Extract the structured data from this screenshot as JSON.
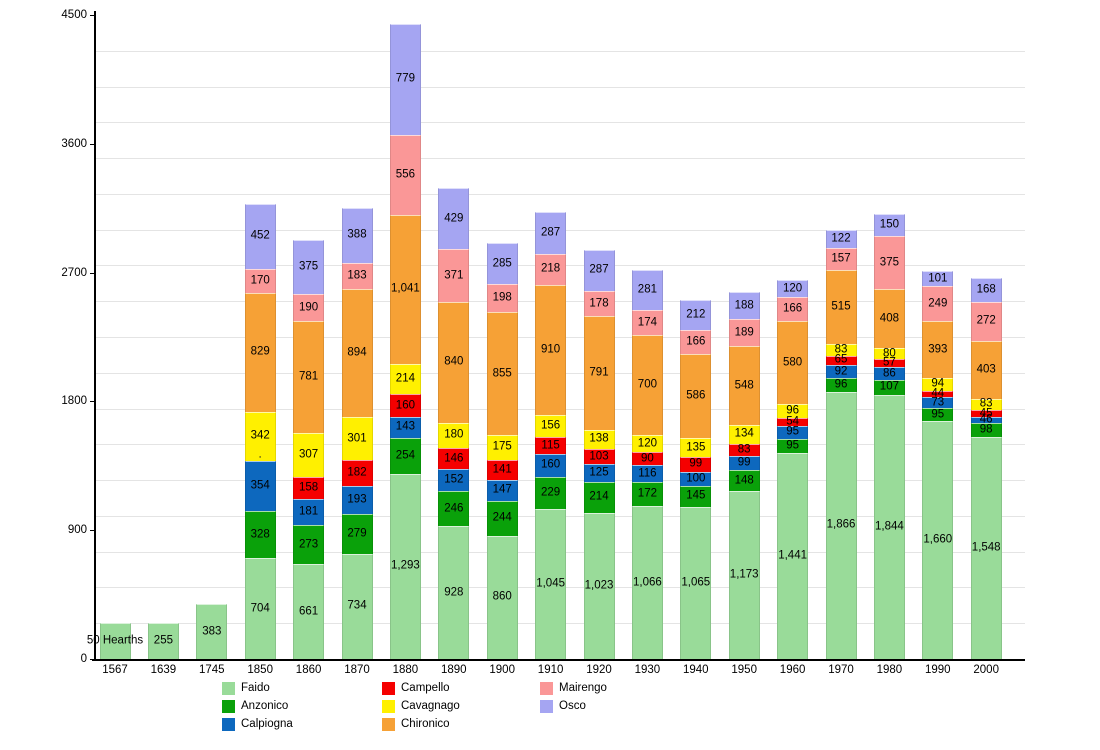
{
  "chart_data": {
    "type": "bar",
    "stacked": true,
    "title": "",
    "xlabel": "",
    "ylabel": "",
    "ylim": [
      0,
      4500
    ],
    "y_tick_labels": [
      "0",
      "900",
      "1800",
      "2700",
      "3600",
      "4500"
    ],
    "y_tick_values": [
      0,
      900,
      1800,
      2700,
      3600,
      4500
    ],
    "gridline_step": 250,
    "grid": true,
    "legend_position": "bottom",
    "categories": [
      "1567",
      "1639",
      "1745",
      "1850",
      "1860",
      "1870",
      "1880",
      "1890",
      "1900",
      "1910",
      "1920",
      "1930",
      "1940",
      "1950",
      "1960",
      "1970",
      "1980",
      "1990",
      "2000"
    ],
    "series": [
      {
        "name": "Faido",
        "color": "#99DB99",
        "values": [
          250,
          255,
          383,
          704,
          661,
          734,
          1293,
          928,
          860,
          1045,
          1023,
          1066,
          1065,
          1173,
          1441,
          1866,
          1844,
          1660,
          1548
        ],
        "label_overrides": {
          "0": "50 Hearths"
        }
      },
      {
        "name": "Anzonico",
        "color": "#0AA10A",
        "values": [
          0,
          0,
          0,
          328,
          273,
          279,
          254,
          246,
          244,
          229,
          214,
          172,
          145,
          148,
          95,
          96,
          107,
          95,
          98
        ]
      },
      {
        "name": "Calpiogna",
        "color": "#0D68BE",
        "values": [
          0,
          0,
          0,
          354,
          181,
          193,
          143,
          152,
          147,
          160,
          125,
          116,
          100,
          99,
          95,
          92,
          86,
          73,
          46
        ]
      },
      {
        "name": "Campello",
        "color": "#F50000",
        "values": [
          0,
          0,
          0,
          0,
          158,
          182,
          160,
          146,
          141,
          115,
          103,
          90,
          99,
          83,
          54,
          65,
          57,
          44,
          45
        ],
        "label_overrides": {
          "3": "▪"
        }
      },
      {
        "name": "Cavagnago",
        "color": "#FFF000",
        "values": [
          0,
          0,
          0,
          342,
          307,
          301,
          214,
          180,
          175,
          156,
          138,
          120,
          135,
          134,
          96,
          83,
          80,
          94,
          83
        ]
      },
      {
        "name": "Chironico",
        "color": "#F6A136",
        "values": [
          0,
          0,
          0,
          829,
          781,
          894,
          1041,
          840,
          855,
          910,
          791,
          700,
          586,
          548,
          580,
          515,
          408,
          393,
          403
        ]
      },
      {
        "name": "Mairengo",
        "color": "#FA9797",
        "values": [
          0,
          0,
          0,
          170,
          190,
          183,
          556,
          371,
          198,
          218,
          178,
          174,
          166,
          189,
          166,
          157,
          375,
          249,
          272
        ]
      },
      {
        "name": "Osco",
        "color": "#A5A5F2",
        "values": [
          0,
          0,
          0,
          452,
          375,
          388,
          779,
          429,
          285,
          287,
          287,
          281,
          212,
          188,
          120,
          122,
          150,
          101,
          168
        ]
      }
    ],
    "legend_columns": [
      [
        "Faido",
        "Anzonico",
        "Calpiogna"
      ],
      [
        "Campello",
        "Cavagnago",
        "Chironico"
      ],
      [
        "Mairengo",
        "Osco"
      ]
    ]
  }
}
